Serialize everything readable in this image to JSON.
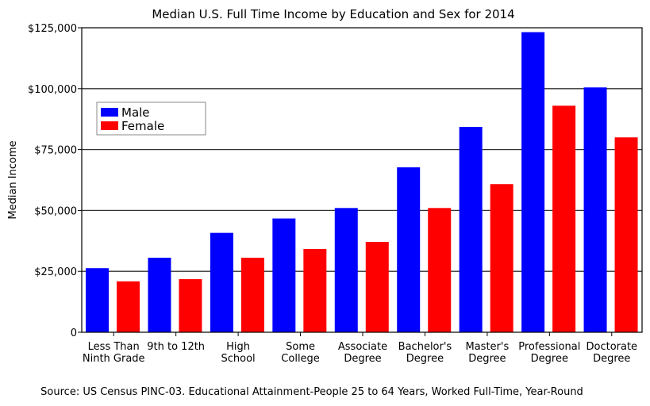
{
  "chart_data": {
    "type": "bar",
    "title": "Median U.S. Full Time Income by Education and Sex for 2014",
    "ylabel": "Median Income",
    "xlabel": "",
    "source": "Source: US Census PINC-03. Educational Attainment-People 25 to 64 Years, Worked Full-Time, Year-Round",
    "categories": [
      [
        "Less Than",
        "Ninth Grade"
      ],
      [
        "9th to 12th"
      ],
      [
        "High",
        "School"
      ],
      [
        "Some",
        "College"
      ],
      [
        "Associate",
        "Degree"
      ],
      [
        "Bachelor's",
        "Degree"
      ],
      [
        "Master's",
        "Degree"
      ],
      [
        "Professional",
        "Degree"
      ],
      [
        "Doctorate",
        "Degree"
      ]
    ],
    "series": [
      {
        "name": "Male",
        "color": "#0000ff",
        "values": [
          26300,
          30600,
          40800,
          46700,
          51000,
          67700,
          84300,
          123200,
          100500
        ]
      },
      {
        "name": "Female",
        "color": "#ff0000",
        "values": [
          20900,
          21800,
          30600,
          34200,
          37100,
          51000,
          60800,
          93000,
          80000
        ]
      }
    ],
    "ylim": [
      0,
      125000
    ],
    "yticks": [
      0,
      25000,
      50000,
      75000,
      100000,
      125000
    ],
    "ytick_labels": [
      "0",
      "$25,000",
      "$50,000",
      "$75,000",
      "$100,000",
      "$125,000"
    ],
    "grid": true,
    "legend_position": "top-left"
  }
}
